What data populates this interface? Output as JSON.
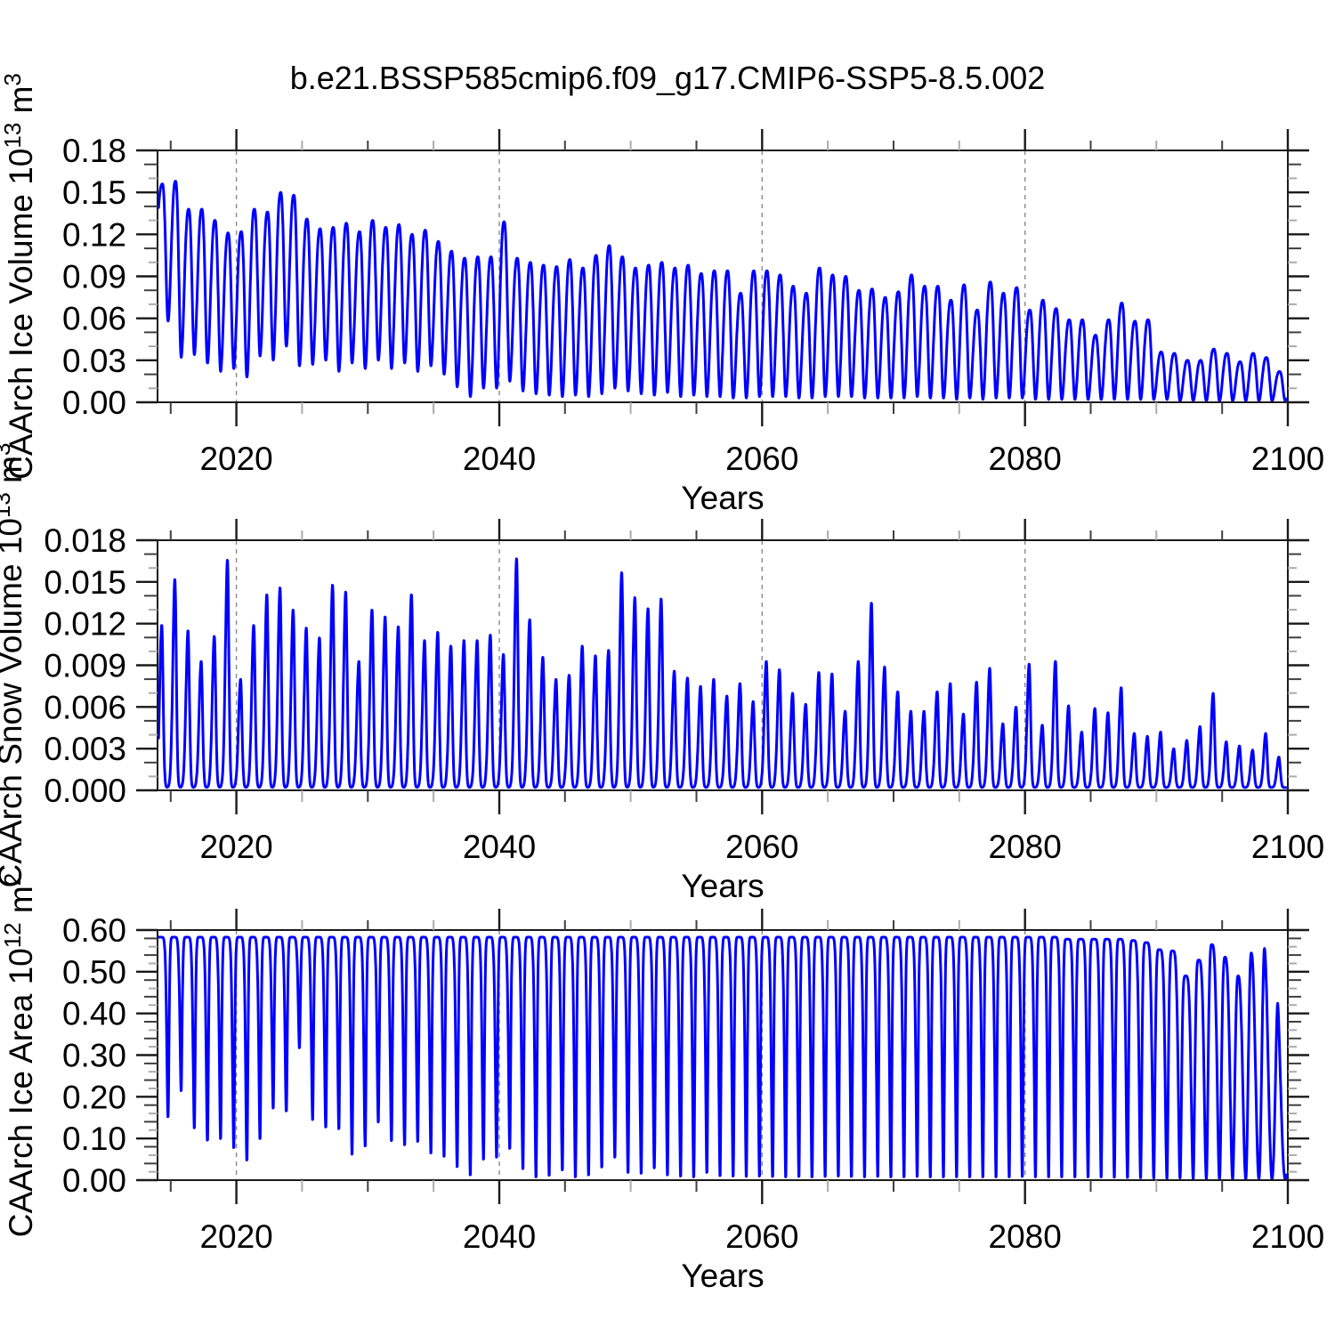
{
  "title": "b.e21.BSSP585cmip6.f09_g17.CMIP6-SSP5-8.5.002",
  "colors": {
    "line": "#0000FF",
    "frame": "#1a1a1a",
    "gridline": "#8a8a8a",
    "tick_major": "#1a1a1a",
    "tick_minor_dark": "#3f3f3f",
    "tick_minor_light": "#ababab",
    "text": "#000000",
    "background": "#ffffff"
  },
  "x_axis": {
    "label": "Years",
    "min": 2014,
    "max": 2100,
    "major_tick_values": [
      2020,
      2040,
      2060,
      2080,
      2100
    ],
    "major_tick_labels": [
      "2020",
      "2040",
      "2060",
      "2080",
      "2100"
    ],
    "minor_tick_step": 5,
    "gridline_values": [
      2020,
      2040,
      2060,
      2080
    ]
  },
  "chart_data": [
    {
      "type": "line",
      "name": "ice-volume",
      "ylabel": "CAArch Ice Volume 10^13 m^3",
      "ylabel_segments": [
        {
          "t": "CAArch Ice Volume 10",
          "sup": false
        },
        {
          "t": "13",
          "sup": true
        },
        {
          "t": " m",
          "sup": false
        },
        {
          "t": "3",
          "sup": true
        }
      ],
      "xlabel": "Years",
      "ylim": [
        0,
        0.18
      ],
      "ytick_values": [
        0.0,
        0.03,
        0.06,
        0.09,
        0.12,
        0.15,
        0.18
      ],
      "ytick_labels": [
        "0.00",
        "0.03",
        "0.06",
        "0.09",
        "0.12",
        "0.15",
        "0.18"
      ],
      "y_minor_step": 0.01,
      "seasonal_model": {
        "shape": "cosine",
        "peak_phase": 0.37,
        "trough_phase": 0.8,
        "sharpness": 1.25,
        "pre_start_min": 0.05,
        "post_end_max": 0.05
      },
      "years": [
        2014,
        2015,
        2016,
        2017,
        2018,
        2019,
        2020,
        2021,
        2022,
        2023,
        2024,
        2025,
        2026,
        2027,
        2028,
        2029,
        2030,
        2031,
        2032,
        2033,
        2034,
        2035,
        2036,
        2037,
        2038,
        2039,
        2040,
        2041,
        2042,
        2043,
        2044,
        2045,
        2046,
        2047,
        2048,
        2049,
        2050,
        2051,
        2052,
        2053,
        2054,
        2055,
        2056,
        2057,
        2058,
        2059,
        2060,
        2061,
        2062,
        2063,
        2064,
        2065,
        2066,
        2067,
        2068,
        2069,
        2070,
        2071,
        2072,
        2073,
        2074,
        2075,
        2076,
        2077,
        2078,
        2079,
        2080,
        2081,
        2082,
        2083,
        2084,
        2085,
        2086,
        2087,
        2088,
        2089,
        2090,
        2091,
        2092,
        2093,
        2094,
        2095,
        2096,
        2097,
        2098,
        2099
      ],
      "winter_max": [
        0.156,
        0.158,
        0.138,
        0.138,
        0.13,
        0.121,
        0.122,
        0.138,
        0.136,
        0.15,
        0.148,
        0.131,
        0.124,
        0.125,
        0.128,
        0.122,
        0.13,
        0.125,
        0.127,
        0.12,
        0.123,
        0.115,
        0.108,
        0.103,
        0.104,
        0.104,
        0.129,
        0.103,
        0.1,
        0.098,
        0.097,
        0.102,
        0.096,
        0.105,
        0.112,
        0.104,
        0.096,
        0.098,
        0.1,
        0.096,
        0.098,
        0.092,
        0.094,
        0.094,
        0.078,
        0.094,
        0.094,
        0.091,
        0.083,
        0.078,
        0.096,
        0.091,
        0.09,
        0.08,
        0.081,
        0.075,
        0.079,
        0.091,
        0.083,
        0.083,
        0.073,
        0.084,
        0.066,
        0.086,
        0.078,
        0.082,
        0.066,
        0.073,
        0.067,
        0.059,
        0.059,
        0.048,
        0.059,
        0.071,
        0.058,
        0.059,
        0.036,
        0.035,
        0.03,
        0.03,
        0.038,
        0.035,
        0.029,
        0.035,
        0.032,
        0.022
      ],
      "summer_min": [
        0.058,
        0.032,
        0.034,
        0.028,
        0.022,
        0.024,
        0.018,
        0.033,
        0.03,
        0.04,
        0.026,
        0.027,
        0.03,
        0.022,
        0.028,
        0.024,
        0.03,
        0.024,
        0.028,
        0.022,
        0.026,
        0.02,
        0.011,
        0.004,
        0.01,
        0.01,
        0.015,
        0.008,
        0.006,
        0.005,
        0.004,
        0.005,
        0.004,
        0.006,
        0.01,
        0.008,
        0.006,
        0.005,
        0.007,
        0.004,
        0.005,
        0.004,
        0.004,
        0.003,
        0.003,
        0.004,
        0.004,
        0.004,
        0.003,
        0.003,
        0.004,
        0.004,
        0.004,
        0.003,
        0.003,
        0.003,
        0.003,
        0.004,
        0.003,
        0.003,
        0.002,
        0.003,
        0.002,
        0.003,
        0.003,
        0.003,
        0.002,
        0.002,
        0.002,
        0.002,
        0.002,
        0.002,
        0.002,
        0.002,
        0.002,
        0.002,
        0.002,
        0.001,
        0.001,
        0.001,
        0.001,
        0.001,
        0.001,
        0.001,
        0.001,
        0.001
      ]
    },
    {
      "type": "line",
      "name": "snow-volume",
      "ylabel": "CAArch Snow Volume 10^13 m^3",
      "ylabel_segments": [
        {
          "t": "CAArch Snow Volume 10",
          "sup": false
        },
        {
          "t": "13",
          "sup": true
        },
        {
          "t": " m",
          "sup": false
        },
        {
          "t": "3",
          "sup": true
        }
      ],
      "xlabel": "Years",
      "ylim": [
        0,
        0.018
      ],
      "ytick_values": [
        0.0,
        0.003,
        0.006,
        0.009,
        0.012,
        0.015,
        0.018
      ],
      "ytick_labels": [
        "0.000",
        "0.003",
        "0.006",
        "0.009",
        "0.012",
        "0.015",
        "0.018"
      ],
      "y_minor_step": 0.001,
      "seasonal_model": {
        "shape": "gaussian_spikes",
        "peak_phase": 0.32,
        "sigma_rise": 0.22,
        "sigma_fall": 0.15,
        "base": 0.0002
      },
      "years": [
        2014,
        2015,
        2016,
        2017,
        2018,
        2019,
        2020,
        2021,
        2022,
        2023,
        2024,
        2025,
        2026,
        2027,
        2028,
        2029,
        2030,
        2031,
        2032,
        2033,
        2034,
        2035,
        2036,
        2037,
        2038,
        2039,
        2040,
        2041,
        2042,
        2043,
        2044,
        2045,
        2046,
        2047,
        2048,
        2049,
        2050,
        2051,
        2052,
        2053,
        2054,
        2055,
        2056,
        2057,
        2058,
        2059,
        2060,
        2061,
        2062,
        2063,
        2064,
        2065,
        2066,
        2067,
        2068,
        2069,
        2070,
        2071,
        2072,
        2073,
        2074,
        2075,
        2076,
        2077,
        2078,
        2079,
        2080,
        2081,
        2082,
        2083,
        2084,
        2085,
        2086,
        2087,
        2088,
        2089,
        2090,
        2091,
        2092,
        2093,
        2094,
        2095,
        2096,
        2097,
        2098,
        2099
      ],
      "winter_max": [
        0.0117,
        0.015,
        0.0113,
        0.0091,
        0.0109,
        0.0164,
        0.0078,
        0.0117,
        0.0139,
        0.0144,
        0.0128,
        0.0115,
        0.0108,
        0.0146,
        0.0141,
        0.0091,
        0.0128,
        0.0123,
        0.0116,
        0.0139,
        0.0106,
        0.0112,
        0.0102,
        0.0106,
        0.0106,
        0.011,
        0.0096,
        0.0165,
        0.0121,
        0.0094,
        0.0078,
        0.0081,
        0.0102,
        0.0095,
        0.0099,
        0.0155,
        0.0137,
        0.0129,
        0.0136,
        0.0084,
        0.0079,
        0.0073,
        0.0078,
        0.0066,
        0.0075,
        0.0062,
        0.0091,
        0.0085,
        0.0068,
        0.006,
        0.0083,
        0.0082,
        0.0055,
        0.0091,
        0.0133,
        0.0087,
        0.0069,
        0.0055,
        0.0055,
        0.0069,
        0.0075,
        0.0053,
        0.0076,
        0.0086,
        0.0046,
        0.0058,
        0.0089,
        0.0045,
        0.0091,
        0.0059,
        0.004,
        0.0057,
        0.0054,
        0.0072,
        0.0039,
        0.0037,
        0.004,
        0.0028,
        0.0034,
        0.0044,
        0.0068,
        0.0033,
        0.003,
        0.0027,
        0.0039,
        0.0022
      ],
      "summer_min": [
        0.0002,
        0.0002,
        0.0002,
        0.0002,
        0.0002,
        0.0002,
        0.0002,
        0.0002,
        0.0002,
        0.0002,
        0.0002,
        0.0002,
        0.0002,
        0.0002,
        0.0002,
        0.0002,
        0.0002,
        0.0002,
        0.0002,
        0.0002,
        0.0002,
        0.0002,
        0.0002,
        0.0002,
        0.0002,
        0.0002,
        0.0002,
        0.0002,
        0.0002,
        0.0002,
        0.0002,
        0.0002,
        0.0002,
        0.0002,
        0.0002,
        0.0002,
        0.0002,
        0.0002,
        0.0002,
        0.0002,
        0.0002,
        0.0002,
        0.0002,
        0.0002,
        0.0002,
        0.0002,
        0.0002,
        0.0002,
        0.0002,
        0.0002,
        0.0002,
        0.0002,
        0.0002,
        0.0002,
        0.0002,
        0.0002,
        0.0002,
        0.0002,
        0.0002,
        0.0002,
        0.0002,
        0.0002,
        0.0002,
        0.0002,
        0.0002,
        0.0002,
        0.0002,
        0.0002,
        0.0002,
        0.0002,
        0.0002,
        0.0002,
        0.0002,
        0.0002,
        0.0002,
        0.0002,
        0.0002,
        0.0002,
        0.0002,
        0.0002,
        0.0002,
        0.0002,
        0.0002,
        0.0002,
        0.0002,
        0.0002
      ]
    },
    {
      "type": "line",
      "name": "ice-area",
      "ylabel": "CAArch Ice Area 10^12 m^2",
      "ylabel_segments": [
        {
          "t": "CAArch Ice Area 10",
          "sup": false
        },
        {
          "t": "12",
          "sup": true
        },
        {
          "t": " m",
          "sup": false
        },
        {
          "t": "2",
          "sup": true
        }
      ],
      "xlabel": "Years",
      "ylim": [
        0,
        0.6
      ],
      "ytick_values": [
        0.0,
        0.1,
        0.2,
        0.3,
        0.4,
        0.5,
        0.6
      ],
      "ytick_labels": [
        "0.00",
        "0.10",
        "0.20",
        "0.30",
        "0.40",
        "0.50",
        "0.60"
      ],
      "y_minor_step": 0.02,
      "seasonal_model": {
        "shape": "plateau_dip",
        "peak_phase": 0.22,
        "trough_phase": 0.8,
        "plateau_exponent_early": 3.2,
        "plateau_exponent_late": 0.8,
        "exponent_decline_start": 2085,
        "pre_start_min": 0.2,
        "post_end_max": 0.45
      },
      "years": [
        2014,
        2015,
        2016,
        2017,
        2018,
        2019,
        2020,
        2021,
        2022,
        2023,
        2024,
        2025,
        2026,
        2027,
        2028,
        2029,
        2030,
        2031,
        2032,
        2033,
        2034,
        2035,
        2036,
        2037,
        2038,
        2039,
        2040,
        2041,
        2042,
        2043,
        2044,
        2045,
        2046,
        2047,
        2048,
        2049,
        2050,
        2051,
        2052,
        2053,
        2054,
        2055,
        2056,
        2057,
        2058,
        2059,
        2060,
        2061,
        2062,
        2063,
        2064,
        2065,
        2066,
        2067,
        2068,
        2069,
        2070,
        2071,
        2072,
        2073,
        2074,
        2075,
        2076,
        2077,
        2078,
        2079,
        2080,
        2081,
        2082,
        2083,
        2084,
        2085,
        2086,
        2087,
        2088,
        2089,
        2090,
        2091,
        2092,
        2093,
        2094,
        2095,
        2096,
        2097,
        2098,
        2099
      ],
      "winter_max": [
        0.583,
        0.583,
        0.583,
        0.583,
        0.583,
        0.583,
        0.583,
        0.583,
        0.583,
        0.583,
        0.583,
        0.583,
        0.583,
        0.583,
        0.583,
        0.583,
        0.583,
        0.583,
        0.583,
        0.583,
        0.583,
        0.583,
        0.583,
        0.583,
        0.583,
        0.583,
        0.583,
        0.583,
        0.583,
        0.583,
        0.583,
        0.583,
        0.583,
        0.583,
        0.583,
        0.583,
        0.583,
        0.583,
        0.583,
        0.583,
        0.583,
        0.583,
        0.583,
        0.583,
        0.583,
        0.583,
        0.583,
        0.583,
        0.583,
        0.583,
        0.583,
        0.583,
        0.583,
        0.583,
        0.583,
        0.583,
        0.583,
        0.583,
        0.583,
        0.583,
        0.583,
        0.583,
        0.583,
        0.583,
        0.583,
        0.583,
        0.583,
        0.583,
        0.583,
        0.578,
        0.578,
        0.578,
        0.578,
        0.578,
        0.575,
        0.57,
        0.553,
        0.55,
        0.49,
        0.528,
        0.565,
        0.535,
        0.49,
        0.545,
        0.556,
        0.425
      ],
      "summer_min": [
        0.148,
        0.211,
        0.121,
        0.091,
        0.095,
        0.073,
        0.043,
        0.095,
        0.169,
        0.162,
        0.315,
        0.141,
        0.123,
        0.119,
        0.057,
        0.077,
        0.135,
        0.09,
        0.08,
        0.088,
        0.06,
        0.052,
        0.027,
        0.007,
        0.045,
        0.05,
        0.071,
        0.022,
        0.002,
        0.006,
        0.019,
        0.002,
        0.007,
        0.026,
        0.05,
        0.013,
        0.011,
        0.024,
        0.007,
        0.004,
        0.002,
        0.013,
        0.005,
        0.004,
        0.003,
        0.004,
        0.003,
        0.002,
        0.003,
        0.002,
        0.003,
        0.004,
        0.003,
        0.002,
        0.003,
        0.002,
        0.002,
        0.003,
        0.002,
        0.002,
        0.002,
        0.002,
        0.002,
        0.002,
        0.002,
        0.003,
        0.002,
        0.002,
        0.002,
        0.002,
        0.002,
        0.002,
        0.002,
        0.002,
        0.002,
        0.002,
        0.002,
        0.003,
        0.002,
        0.002,
        0.002,
        0.002,
        0.002,
        0.003,
        0.002,
        0.002
      ]
    }
  ]
}
